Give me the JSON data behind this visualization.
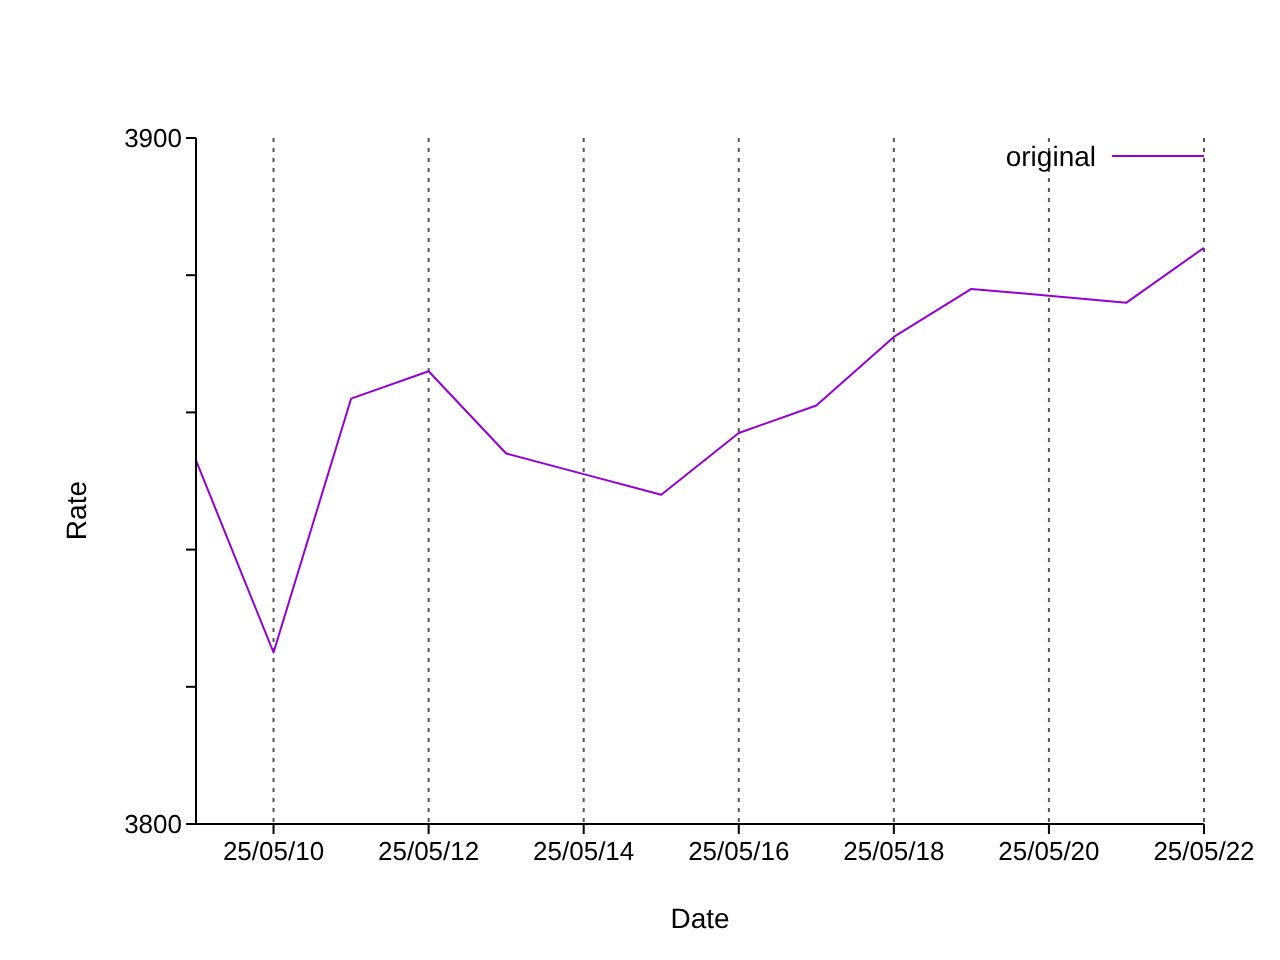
{
  "chart_data": {
    "type": "line",
    "xlabel": "Date",
    "ylabel": "Rate",
    "x": [
      "--05-09",
      "--05-10",
      "--05-11",
      "--05-12",
      "--05-13",
      "--05-14",
      "--05-15",
      "--05-16",
      "--05-17",
      "--05-18",
      "--05-19",
      "--05-20",
      "--05-21",
      "--05-22"
    ],
    "series": [
      {
        "name": "original",
        "color": "#9400d3",
        "values": [
          3853,
          3825,
          3862,
          3866,
          3854,
          3851,
          3848,
          3857,
          3861,
          3871,
          3878,
          3877,
          3876,
          3884
        ]
      }
    ],
    "xlim": [
      "--05-09",
      "--05-22"
    ],
    "xticks": [
      {
        "value": "--05-10",
        "label": "25/05/10"
      },
      {
        "value": "--05-12",
        "label": "25/05/12"
      },
      {
        "value": "--05-14",
        "label": "25/05/14"
      },
      {
        "value": "--05-16",
        "label": "25/05/16"
      },
      {
        "value": "--05-18",
        "label": "25/05/18"
      },
      {
        "value": "--05-20",
        "label": "25/05/20"
      },
      {
        "value": "--05-22",
        "label": "25/05/22"
      }
    ],
    "ylim": [
      3800,
      3900
    ],
    "yticks": [
      3800,
      {
        "value": 3820,
        "label": null
      },
      {
        "value": 3840,
        "label": null
      },
      {
        "value": 3860,
        "label": null
      },
      {
        "value": 3880,
        "label": null
      },
      3900
    ],
    "grid": "x",
    "legend": "top right",
    "marker": "none",
    "line_style": "solid"
  }
}
